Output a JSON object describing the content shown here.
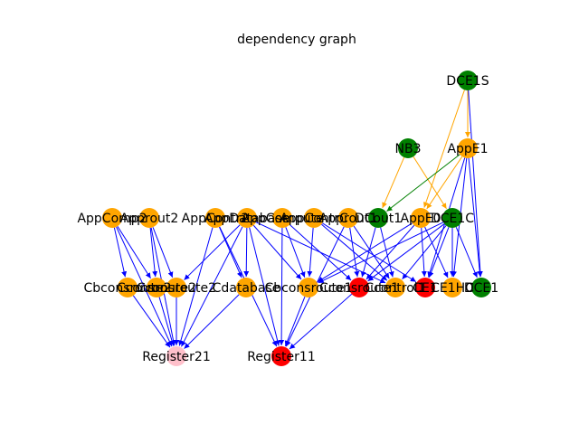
{
  "title": "dependency graph",
  "colors": {
    "orange": "#ffa500",
    "green": "#008000",
    "red": "#ff0000",
    "pink": "#ffc0cb",
    "edge_blue": "#0000ff",
    "edge_orange": "#ffa500",
    "edge_green": "#008000"
  },
  "nodes": [
    {
      "id": "DCE1S",
      "label": "DCE1S",
      "color": "green"
    },
    {
      "id": "NB3",
      "label": "NB3",
      "color": "green"
    },
    {
      "id": "AppE1",
      "label": "AppE1",
      "color": "orange"
    },
    {
      "id": "AppComp2",
      "label": "AppComp2",
      "color": "orange"
    },
    {
      "id": "Approut2",
      "label": "Approut2",
      "color": "orange"
    },
    {
      "id": "AppContr2",
      "label": "AppContr2",
      "color": "orange"
    },
    {
      "id": "AppDatabase",
      "label": "AppDatabase",
      "color": "orange"
    },
    {
      "id": "AppCompute",
      "label": "AppCompute",
      "color": "orange"
    },
    {
      "id": "AppContrC",
      "label": "AppContrC",
      "color": "orange"
    },
    {
      "id": "Approut1",
      "label": "Approut1",
      "color": "orange"
    },
    {
      "id": "DCout1",
      "label": "DCout1",
      "color": "green"
    },
    {
      "id": "AppE0",
      "label": "AppE0",
      "color": "orange"
    },
    {
      "id": "DCE1C",
      "label": "DCE1C",
      "color": "green"
    },
    {
      "id": "Cbconsroute2",
      "label": "Cbconsroute2",
      "color": "orange"
    },
    {
      "id": "Cconsroute2",
      "label": "Cconsroute2",
      "color": "orange"
    },
    {
      "id": "Cconsroute2b",
      "label": "Cconsroute2",
      "color": "orange"
    },
    {
      "id": "Cdatabase",
      "label": "Cdatabase",
      "color": "orange"
    },
    {
      "id": "Cbconsroute1",
      "label": "Cbconsroute1",
      "color": "orange"
    },
    {
      "id": "Cconsroute1",
      "label": "Cconsroute1",
      "color": "red"
    },
    {
      "id": "Ccontrol1",
      "label": "Ccontrol1",
      "color": "orange"
    },
    {
      "id": "CE1",
      "label": "CE1",
      "color": "red"
    },
    {
      "id": "CE1HC",
      "label": "CE1HC",
      "color": "orange"
    },
    {
      "id": "DCE1",
      "label": "DCE1",
      "color": "green"
    },
    {
      "id": "Register21",
      "label": "Register21",
      "color": "pink"
    },
    {
      "id": "Register11",
      "label": "Register11",
      "color": "red"
    }
  ],
  "edges": [
    {
      "from": "DCE1S",
      "to": "AppE1",
      "color": "edge_orange"
    },
    {
      "from": "DCE1S",
      "to": "AppE0",
      "color": "edge_orange"
    },
    {
      "from": "DCE1S",
      "to": "DCE1",
      "color": "edge_blue"
    },
    {
      "from": "NB3",
      "to": "DCout1",
      "color": "edge_orange"
    },
    {
      "from": "NB3",
      "to": "DCE1C",
      "color": "edge_orange"
    },
    {
      "from": "AppE1",
      "to": "DCout1",
      "color": "edge_green"
    },
    {
      "from": "AppE1",
      "to": "AppE0",
      "color": "edge_orange"
    },
    {
      "from": "AppE1",
      "to": "CE1HC",
      "color": "edge_blue"
    },
    {
      "from": "AppE1",
      "to": "DCE1",
      "color": "edge_blue"
    },
    {
      "from": "AppE1",
      "to": "CE1",
      "color": "edge_blue"
    },
    {
      "from": "AppComp2",
      "to": "Cconsroute2",
      "color": "edge_blue"
    },
    {
      "from": "AppComp2",
      "to": "Cbconsroute2",
      "color": "edge_blue"
    },
    {
      "from": "AppComp2",
      "to": "Register21",
      "color": "edge_blue"
    },
    {
      "from": "Approut2",
      "to": "Cconsroute2",
      "color": "edge_blue"
    },
    {
      "from": "Approut2",
      "to": "Cconsroute2b",
      "color": "edge_blue"
    },
    {
      "from": "Approut2",
      "to": "Register21",
      "color": "edge_blue"
    },
    {
      "from": "AppContr2",
      "to": "Cdatabase",
      "color": "edge_blue"
    },
    {
      "from": "AppContr2",
      "to": "Register21",
      "color": "edge_blue"
    },
    {
      "from": "AppContr2",
      "to": "Register11",
      "color": "edge_blue"
    },
    {
      "from": "AppDatabase",
      "to": "Cdatabase",
      "color": "edge_blue"
    },
    {
      "from": "AppDatabase",
      "to": "Cconsroute2b",
      "color": "edge_blue"
    },
    {
      "from": "AppDatabase",
      "to": "Register11",
      "color": "edge_blue"
    },
    {
      "from": "AppDatabase",
      "to": "Cbconsroute1",
      "color": "edge_blue"
    },
    {
      "from": "AppDatabase",
      "to": "Register21",
      "color": "edge_blue"
    },
    {
      "from": "AppDatabase",
      "to": "Ccontrol1",
      "color": "edge_blue"
    },
    {
      "from": "AppCompute",
      "to": "Cbconsroute1",
      "color": "edge_blue"
    },
    {
      "from": "AppCompute",
      "to": "Register11",
      "color": "edge_blue"
    },
    {
      "from": "AppCompute",
      "to": "Cconsroute1",
      "color": "edge_blue"
    },
    {
      "from": "AppContrC",
      "to": "Cbconsroute1",
      "color": "edge_blue"
    },
    {
      "from": "AppContrC",
      "to": "Ccontrol1",
      "color": "edge_blue"
    },
    {
      "from": "AppContrC",
      "to": "CE1",
      "color": "edge_blue"
    },
    {
      "from": "Approut1",
      "to": "Cconsroute1",
      "color": "edge_blue"
    },
    {
      "from": "Approut1",
      "to": "Ccontrol1",
      "color": "edge_blue"
    },
    {
      "from": "Approut1",
      "to": "Register11",
      "color": "edge_blue"
    },
    {
      "from": "DCout1",
      "to": "Cconsroute1",
      "color": "edge_blue"
    },
    {
      "from": "DCout1",
      "to": "Ccontrol1",
      "color": "edge_blue"
    },
    {
      "from": "AppE0",
      "to": "Cconsroute1",
      "color": "edge_blue"
    },
    {
      "from": "AppE0",
      "to": "Cbconsroute1",
      "color": "edge_blue"
    },
    {
      "from": "AppE0",
      "to": "CE1",
      "color": "edge_blue"
    },
    {
      "from": "AppE0",
      "to": "CE1HC",
      "color": "edge_blue"
    },
    {
      "from": "DCE1C",
      "to": "Cconsroute1",
      "color": "edge_blue"
    },
    {
      "from": "DCE1C",
      "to": "Ccontrol1",
      "color": "edge_blue"
    },
    {
      "from": "DCE1C",
      "to": "CE1",
      "color": "edge_blue"
    },
    {
      "from": "DCE1C",
      "to": "CE1HC",
      "color": "edge_blue"
    },
    {
      "from": "DCE1C",
      "to": "DCE1",
      "color": "edge_blue"
    },
    {
      "from": "DCE1C",
      "to": "Cbconsroute1",
      "color": "edge_blue"
    },
    {
      "from": "Cbconsroute2",
      "to": "Register21",
      "color": "edge_blue"
    },
    {
      "from": "Cconsroute2",
      "to": "Register21",
      "color": "edge_blue"
    },
    {
      "from": "Cconsroute2b",
      "to": "Register21",
      "color": "edge_blue"
    },
    {
      "from": "Cdatabase",
      "to": "Register21",
      "color": "edge_blue"
    },
    {
      "from": "Cbconsroute1",
      "to": "Register11",
      "color": "edge_blue"
    },
    {
      "from": "Cconsroute1",
      "to": "Register11",
      "color": "edge_blue"
    }
  ]
}
